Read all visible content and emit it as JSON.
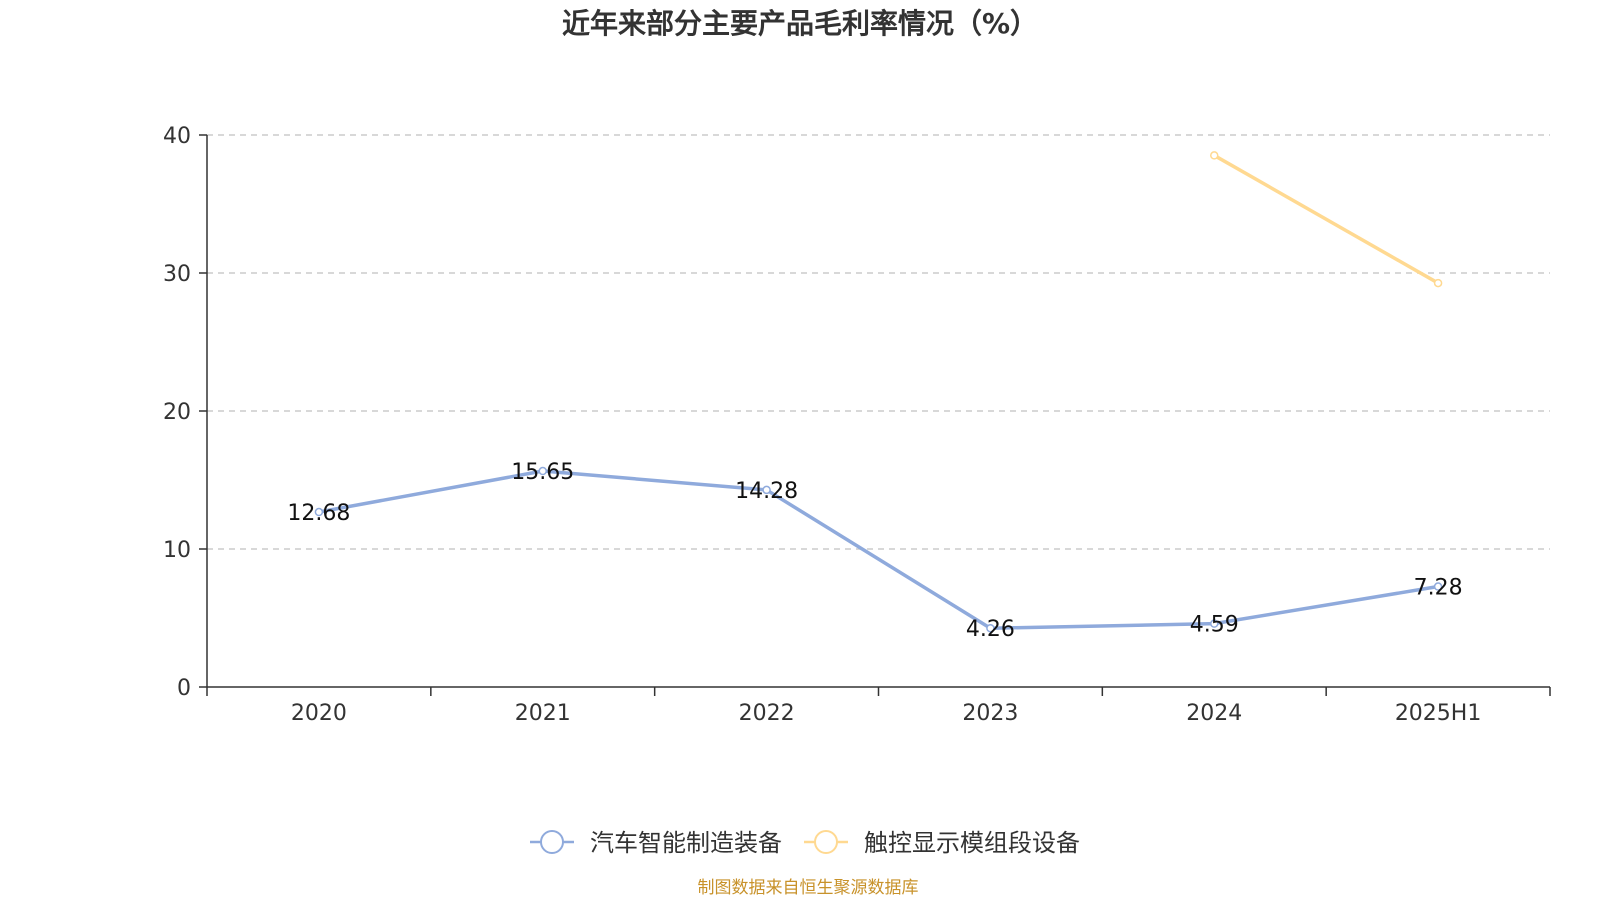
{
  "colors": {
    "series_1": "#8faadc",
    "series_2": "#ffd991",
    "axis": "#333333",
    "grid": "#cccccc",
    "source": "#c8922a"
  },
  "chart_data": {
    "type": "line",
    "title": "近年来部分主要产品毛利率情况（%）",
    "categories": [
      "2020",
      "2021",
      "2022",
      "2023",
      "2024",
      "2025H1"
    ],
    "series": [
      {
        "name": "汽车智能制造装备",
        "values": [
          12.68,
          15.65,
          14.28,
          4.26,
          4.59,
          7.28
        ],
        "labels": [
          "12.68",
          "15.65",
          "14.28",
          "4.26",
          "4.59",
          "7.28"
        ],
        "show_labels": true
      },
      {
        "name": "触控显示模组段设备",
        "values": [
          null,
          null,
          null,
          null,
          38.52,
          29.27
        ],
        "labels": [
          "",
          "",
          "",
          "",
          "",
          ""
        ],
        "show_labels": false
      }
    ],
    "y_ticks": [
      "0",
      "10",
      "20",
      "30",
      "40"
    ],
    "ylim": [
      0,
      40
    ],
    "grid": true,
    "legend_position": "bottom-center"
  },
  "source": "制图数据来自恒生聚源数据库"
}
